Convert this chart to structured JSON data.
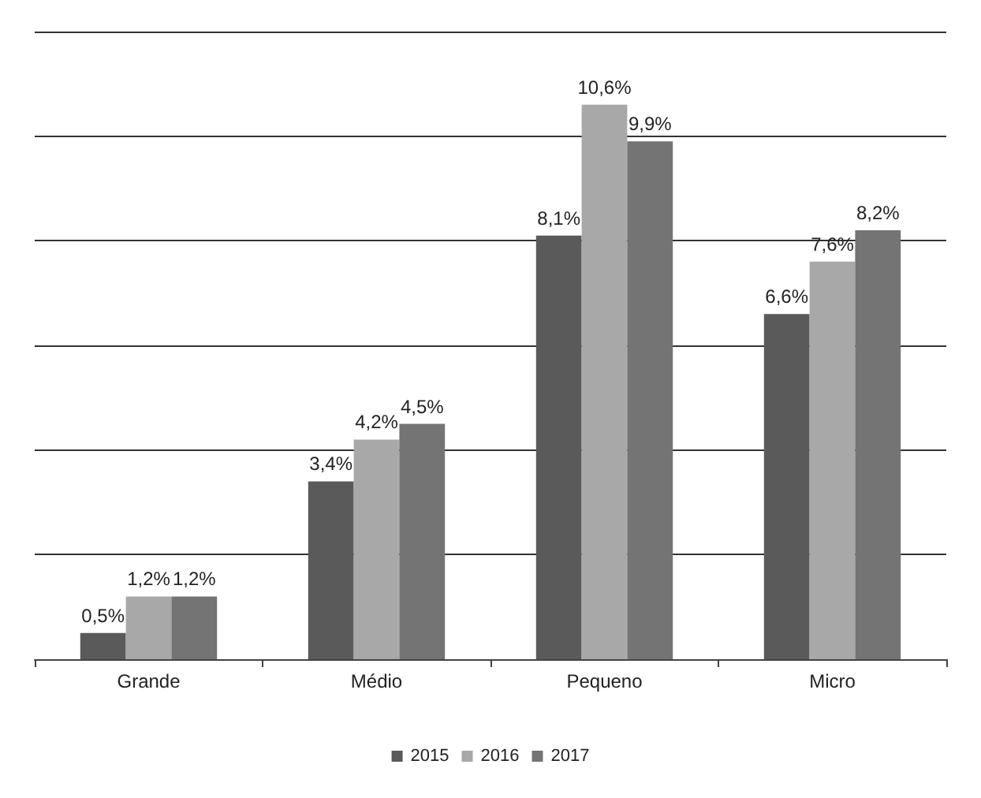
{
  "chart_data": {
    "type": "bar",
    "categories": [
      "Grande",
      "Médio",
      "Pequeno",
      "Micro"
    ],
    "series": [
      {
        "name": "2015",
        "color": "#5a5a5a",
        "values": [
          0.5,
          3.4,
          8.1,
          6.6
        ],
        "value_labels": [
          "0,5%",
          "3,4%",
          "8,1%",
          "6,6%"
        ]
      },
      {
        "name": "2016",
        "color": "#a8a8a8",
        "values": [
          1.2,
          4.2,
          10.6,
          7.6
        ],
        "value_labels": [
          "1,2%",
          "4,2%",
          "10,6%",
          "7,6%"
        ]
      },
      {
        "name": "2017",
        "color": "#747474",
        "values": [
          1.2,
          4.5,
          9.9,
          8.2
        ],
        "value_labels": [
          "1,2%",
          "4,5%",
          "9,9%",
          "8,2%"
        ]
      }
    ],
    "ylim": [
      0,
      12
    ],
    "yticks": [
      {
        "value": 0,
        "label": null
      },
      {
        "value": 2,
        "label": null
      },
      {
        "value": 4,
        "label": null
      },
      {
        "value": 6,
        "label": null
      },
      {
        "value": 8,
        "label": null
      },
      {
        "value": 10,
        "label": null
      },
      {
        "value": 12,
        "label": null
      }
    ],
    "grid": "y",
    "legend": "bottom",
    "tick_labels": "x"
  }
}
